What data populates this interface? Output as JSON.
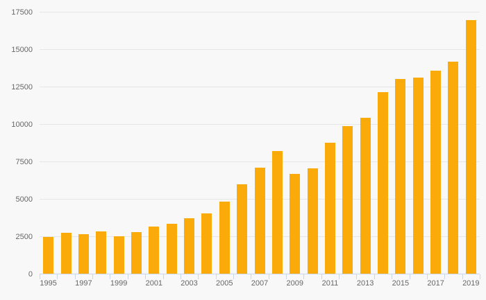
{
  "chart_data": {
    "type": "bar",
    "title": "",
    "xlabel": "",
    "ylabel": "",
    "x": [
      1995,
      1996,
      1997,
      1998,
      1999,
      2000,
      2001,
      2002,
      2003,
      2004,
      2005,
      2006,
      2007,
      2008,
      2009,
      2010,
      2011,
      2012,
      2013,
      2014,
      2015,
      2016,
      2017,
      2018,
      2019
    ],
    "values": [
      2500,
      2800,
      2700,
      2860,
      2550,
      2840,
      3180,
      3370,
      3760,
      4090,
      4880,
      6020,
      7140,
      8260,
      6730,
      7070,
      8800,
      9910,
      10460,
      12160,
      13040,
      13130,
      13610,
      14210,
      16990
    ],
    "ylim": [
      0,
      17500
    ],
    "y_tick_interval": 2500,
    "y_tick_labels": [
      "0",
      "2500",
      "5000",
      "7500",
      "10000",
      "12500",
      "15000",
      "17500"
    ],
    "x_tick_labels": [
      "1995",
      "1997",
      "1999",
      "2001",
      "2003",
      "2005",
      "2007",
      "2009",
      "2011",
      "2013",
      "2015",
      "2017",
      "2019"
    ],
    "grid": "horizontal-only",
    "legend": "none"
  },
  "colors": {
    "bar": "#faab0a",
    "axis_line": "#ccd6eb",
    "gridline": "#e6e6e6",
    "tick_label": "#666666",
    "background": "#f8f8f8"
  }
}
